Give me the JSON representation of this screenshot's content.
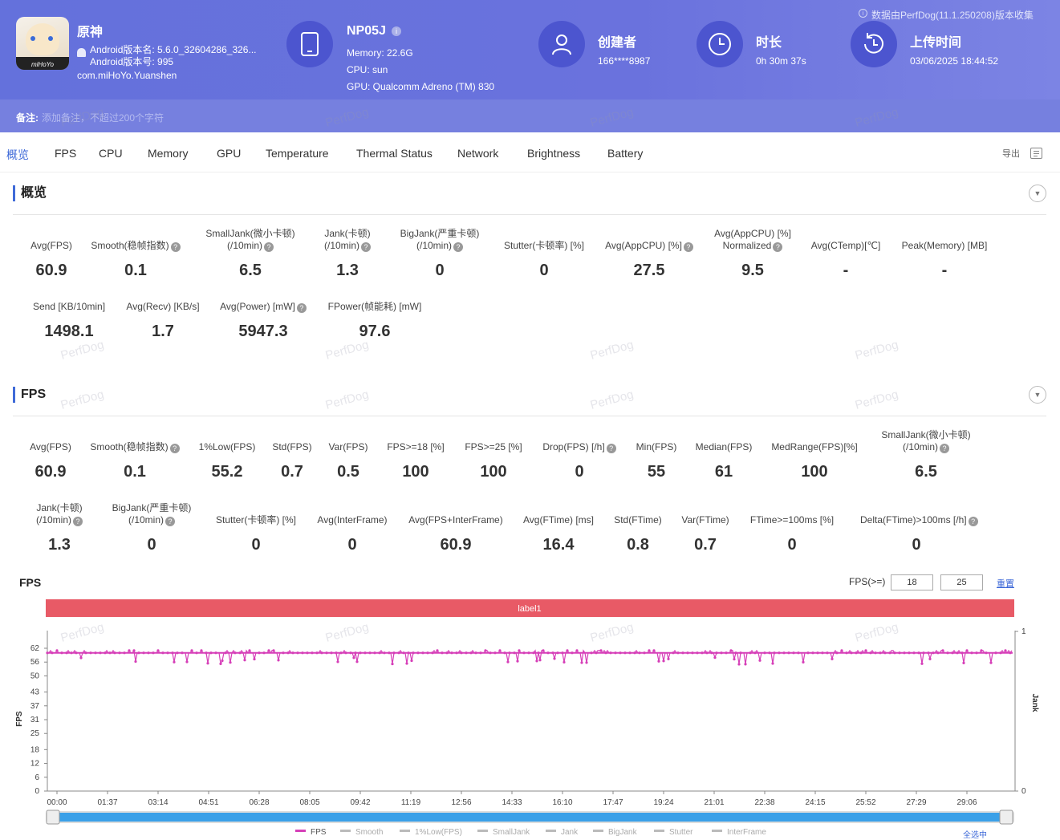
{
  "header": {
    "app_name": "原神",
    "app_version_name": "Android版本名: 5.6.0_32604286_326...",
    "app_version_code": "Android版本号: 995",
    "package": "com.miHoYo.Yuanshen",
    "device_name": "NP05J",
    "memory": "Memory: 22.6G",
    "cpu": "CPU: sun",
    "gpu": "GPU: Qualcomm Adreno (TM) 830",
    "creator_title": "创建者",
    "creator_value": "166****8987",
    "duration_title": "时长",
    "duration_value": "0h 30m 37s",
    "upload_title": "上传时间",
    "upload_value": "03/06/2025 18:44:52",
    "source_note": "数据由PerfDog(11.1.250208)版本收集",
    "remark_label": "备注:",
    "remark_placeholder": "添加备注，不超过200个字符",
    "logo_text": "miHoYo",
    "watermark": "PerfDog"
  },
  "tabs": [
    "概览",
    "FPS",
    "CPU",
    "Memory",
    "GPU",
    "Temperature",
    "Thermal Status",
    "Network",
    "Brightness",
    "Battery"
  ],
  "export_label": "导出",
  "overview": {
    "title": "概览",
    "row1": [
      {
        "l1": "",
        "l2": "Avg(FPS)",
        "v": "60.9",
        "q": false
      },
      {
        "l1": "",
        "l2": "Smooth(稳帧指数)",
        "v": "0.1",
        "q": true
      },
      {
        "l1": "SmallJank(微小卡顿)",
        "l2": "(/10min)",
        "v": "6.5",
        "q": true
      },
      {
        "l1": "Jank(卡顿)",
        "l2": "(/10min)",
        "v": "1.3",
        "q": true
      },
      {
        "l1": "BigJank(严重卡顿)",
        "l2": "(/10min)",
        "v": "0",
        "q": true
      },
      {
        "l1": "",
        "l2": "Stutter(卡顿率) [%]",
        "v": "0",
        "q": false
      },
      {
        "l1": "",
        "l2": "Avg(AppCPU) [%]",
        "v": "27.5",
        "q": true
      },
      {
        "l1": "Avg(AppCPU) [%]",
        "l2": "Normalized",
        "v": "9.5",
        "q": true
      },
      {
        "l1": "",
        "l2": "Avg(CTemp)[℃]",
        "v": "-",
        "q": false
      },
      {
        "l1": "",
        "l2": "Peak(Memory) [MB]",
        "v": "-",
        "q": false
      }
    ],
    "row2": [
      {
        "l1": "",
        "l2": "Send [KB/10min]",
        "v": "1498.1",
        "q": false
      },
      {
        "l1": "",
        "l2": "Avg(Recv) [KB/s]",
        "v": "1.7",
        "q": false
      },
      {
        "l1": "",
        "l2": "Avg(Power) [mW]",
        "v": "5947.3",
        "q": true
      },
      {
        "l1": "",
        "l2": "FPower(帧能耗) [mW]",
        "v": "97.6",
        "q": false
      }
    ]
  },
  "fps": {
    "title": "FPS",
    "row1": [
      {
        "l1": "",
        "l2": "Avg(FPS)",
        "v": "60.9",
        "q": false
      },
      {
        "l1": "",
        "l2": "Smooth(稳帧指数)",
        "v": "0.1",
        "q": true
      },
      {
        "l1": "",
        "l2": "1%Low(FPS)",
        "v": "55.2",
        "q": false
      },
      {
        "l1": "",
        "l2": "Std(FPS)",
        "v": "0.7",
        "q": false
      },
      {
        "l1": "",
        "l2": "Var(FPS)",
        "v": "0.5",
        "q": false
      },
      {
        "l1": "",
        "l2": "FPS>=18 [%]",
        "v": "100",
        "q": false
      },
      {
        "l1": "",
        "l2": "FPS>=25 [%]",
        "v": "100",
        "q": false
      },
      {
        "l1": "",
        "l2": "Drop(FPS) [/h]",
        "v": "0",
        "q": true
      },
      {
        "l1": "",
        "l2": "Min(FPS)",
        "v": "55",
        "q": false
      },
      {
        "l1": "",
        "l2": "Median(FPS)",
        "v": "61",
        "q": false
      },
      {
        "l1": "",
        "l2": "MedRange(FPS)[%]",
        "v": "100",
        "q": false
      },
      {
        "l1": "SmallJank(微小卡顿)",
        "l2": "(/10min)",
        "v": "6.5",
        "q": true
      }
    ],
    "row2": [
      {
        "l1": "Jank(卡顿)",
        "l2": "(/10min)",
        "v": "1.3",
        "q": true
      },
      {
        "l1": "BigJank(严重卡顿)",
        "l2": "(/10min)",
        "v": "0",
        "q": true
      },
      {
        "l1": "",
        "l2": "Stutter(卡顿率) [%]",
        "v": "0",
        "q": false
      },
      {
        "l1": "",
        "l2": "Avg(InterFrame)",
        "v": "0",
        "q": false
      },
      {
        "l1": "",
        "l2": "Avg(FPS+InterFrame)",
        "v": "60.9",
        "q": false
      },
      {
        "l1": "",
        "l2": "Avg(FTime) [ms]",
        "v": "16.4",
        "q": false
      },
      {
        "l1": "",
        "l2": "Std(FTime)",
        "v": "0.8",
        "q": false
      },
      {
        "l1": "",
        "l2": "Var(FTime)",
        "v": "0.7",
        "q": false
      },
      {
        "l1": "",
        "l2": "FTime>=100ms [%]",
        "v": "0",
        "q": false
      },
      {
        "l1": "",
        "l2": "Delta(FTime)>100ms [/h]",
        "v": "0",
        "q": true
      }
    ]
  },
  "chart_controls": {
    "title": "FPS",
    "threshold_label": "FPS(>=)",
    "threshold1": "18",
    "threshold2": "25",
    "reset_label": "重置",
    "select_all_label": "全选中"
  },
  "chart_data": {
    "type": "line",
    "label_band": "label1",
    "ylabel": "FPS",
    "y2label": "Jank",
    "yticks": [
      "62",
      "56",
      "50",
      "43",
      "37",
      "31",
      "25",
      "18",
      "12",
      "6",
      "0"
    ],
    "ytick_values": [
      62,
      56,
      50,
      43,
      37,
      31,
      25,
      18,
      12,
      6,
      0
    ],
    "y2ticks": [
      "1",
      "0"
    ],
    "xticks": [
      "00:00",
      "01:37",
      "03:14",
      "04:51",
      "06:28",
      "08:05",
      "09:42",
      "11:19",
      "12:56",
      "14:33",
      "16:10",
      "17:47",
      "19:24",
      "21:01",
      "22:38",
      "24:15",
      "25:52",
      "27:29",
      "29:06"
    ],
    "ylim": [
      0,
      62
    ],
    "xlim_seconds": [
      0,
      1837
    ],
    "series": [
      {
        "name": "FPS",
        "color": "#d63fb8",
        "baseline": 60,
        "min": 55,
        "max": 61
      }
    ],
    "legend": [
      "FPS",
      "Smooth",
      "1%Low(FPS)",
      "SmallJank",
      "Jank",
      "BigJank",
      "Stutter",
      "InterFrame"
    ],
    "colors": {
      "fps": "#d63fb8",
      "label_band": "#e85a66",
      "slider": "#3aa0e8"
    }
  }
}
